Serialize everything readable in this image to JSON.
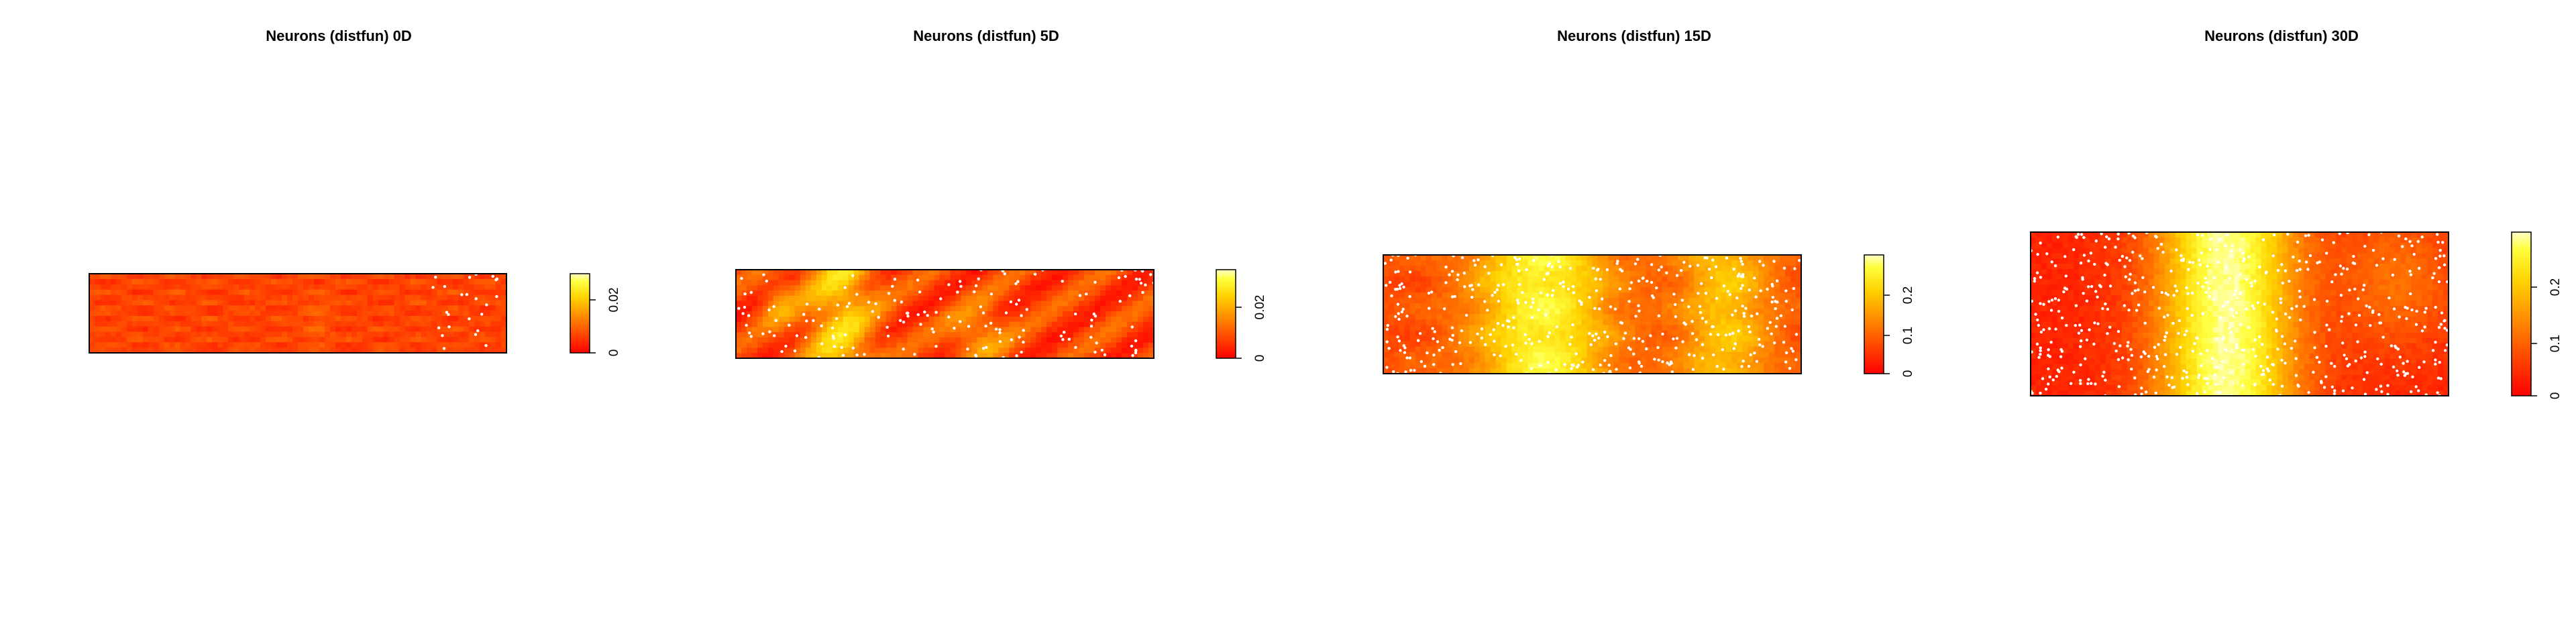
{
  "chart_data": [
    {
      "type": "heatmap",
      "title": "Neurons (distfun) 0D",
      "colorbar": {
        "ticks": [
          0,
          0.02
        ],
        "tick_labels": [
          "0",
          "0.02"
        ],
        "range": [
          0,
          0.03
        ]
      },
      "colormap": [
        "#ff0000",
        "#ffff00",
        "#ffffff"
      ],
      "points_color": "#ffffff",
      "pattern": "uniform-low",
      "points_level": "sparse-right",
      "xlabel": "",
      "ylabel": ""
    },
    {
      "type": "heatmap",
      "title": "Neurons (distfun) 5D",
      "colorbar": {
        "ticks": [
          0,
          0.02
        ],
        "tick_labels": [
          "0",
          "0.02"
        ],
        "range": [
          0,
          0.035
        ]
      },
      "colormap": [
        "#ff0000",
        "#ffff00",
        "#ffffff"
      ],
      "points_color": "#ffffff",
      "pattern": "patchy",
      "points_level": "medium",
      "xlabel": "",
      "ylabel": ""
    },
    {
      "type": "heatmap",
      "title": "Neurons (distfun) 15D",
      "colorbar": {
        "ticks": [
          0,
          0.1,
          0.2
        ],
        "tick_labels": [
          "0",
          "0.1",
          "0.2"
        ],
        "range": [
          0,
          0.28
        ]
      },
      "colormap": [
        "#ff0000",
        "#ffff00",
        "#ffffff"
      ],
      "points_color": "#ffffff",
      "pattern": "two-bands",
      "points_level": "dense",
      "xlabel": "",
      "ylabel": ""
    },
    {
      "type": "heatmap",
      "title": "Neurons (distfun) 30D",
      "colorbar": {
        "ticks": [
          0,
          0.1,
          0.2
        ],
        "tick_labels": [
          "0",
          "0.1",
          "0.2"
        ],
        "range": [
          0,
          0.28
        ]
      },
      "colormap": [
        "#ff0000",
        "#ffff00",
        "#ffffff"
      ],
      "points_color": "#ffffff",
      "pattern": "central-band",
      "points_level": "dense",
      "xlabel": "",
      "ylabel": ""
    }
  ]
}
